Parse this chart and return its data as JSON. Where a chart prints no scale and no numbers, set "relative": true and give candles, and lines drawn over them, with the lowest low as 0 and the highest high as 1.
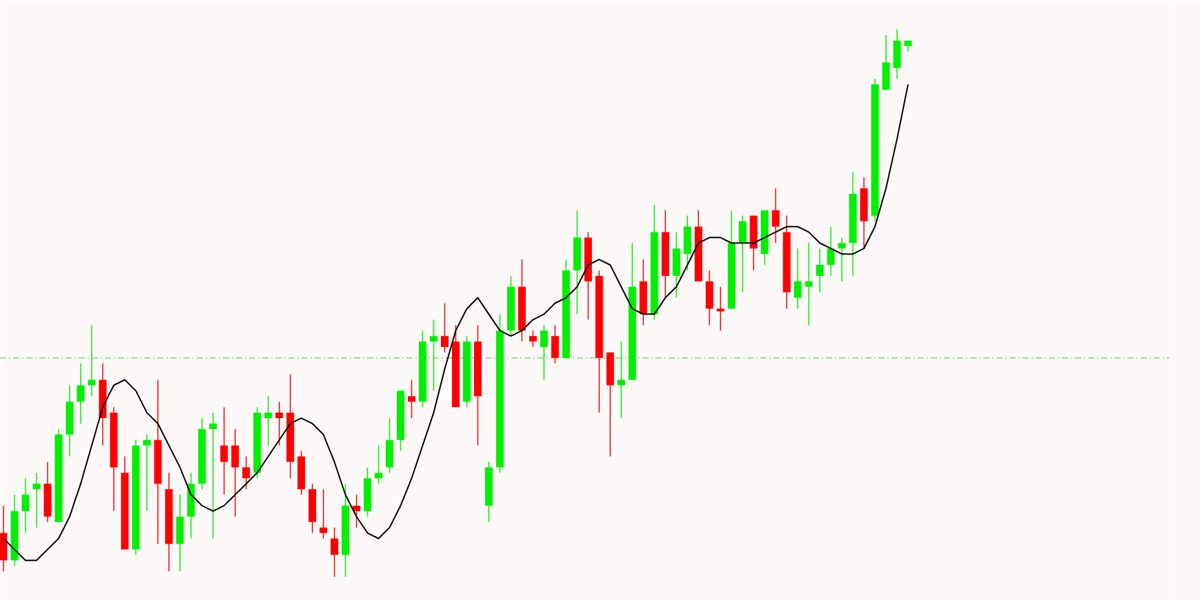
{
  "chart_data": {
    "type": "candlestick",
    "relative": true,
    "categories": [
      null,
      null,
      null,
      null,
      null,
      null,
      null,
      null,
      null,
      null,
      null,
      null,
      null,
      null,
      null,
      null,
      null,
      null,
      null,
      null,
      null,
      null,
      null,
      null,
      null,
      null,
      null,
      null,
      null,
      null,
      null,
      null,
      null,
      null,
      null,
      null,
      null,
      null,
      null,
      null,
      null,
      null,
      null,
      null,
      null,
      null,
      null,
      null,
      null,
      null,
      null,
      null,
      null,
      null,
      null,
      null,
      null,
      null,
      null,
      null,
      null,
      null,
      null,
      null,
      null,
      null,
      null,
      null,
      null,
      null,
      null,
      null,
      null,
      null,
      null,
      null,
      null,
      null,
      null,
      null,
      null,
      null,
      null
    ],
    "ohlc": [
      [
        0.08,
        0.13,
        0.01,
        0.03
      ],
      [
        0.03,
        0.15,
        0.02,
        0.12
      ],
      [
        0.12,
        0.18,
        0.08,
        0.15
      ],
      [
        0.16,
        0.19,
        0.09,
        0.17
      ],
      [
        0.17,
        0.21,
        0.1,
        0.11
      ],
      [
        0.1,
        0.27,
        0.1,
        0.26
      ],
      [
        0.26,
        0.35,
        0.22,
        0.32
      ],
      [
        0.32,
        0.39,
        0.28,
        0.35
      ],
      [
        0.35,
        0.46,
        0.33,
        0.36
      ],
      [
        0.36,
        0.39,
        0.24,
        0.29
      ],
      [
        0.3,
        0.31,
        0.12,
        0.2
      ],
      [
        0.19,
        0.22,
        0.05,
        0.05
      ],
      [
        0.05,
        0.25,
        0.04,
        0.24
      ],
      [
        0.24,
        0.26,
        0.12,
        0.25
      ],
      [
        0.25,
        0.36,
        0.06,
        0.17
      ],
      [
        0.16,
        0.19,
        0.01,
        0.06
      ],
      [
        0.06,
        0.15,
        0.01,
        0.11
      ],
      [
        0.11,
        0.19,
        0.07,
        0.17
      ],
      [
        0.17,
        0.29,
        0.16,
        0.27
      ],
      [
        0.27,
        0.3,
        0.07,
        0.28
      ],
      [
        0.24,
        0.31,
        0.15,
        0.21
      ],
      [
        0.24,
        0.27,
        0.11,
        0.2
      ],
      [
        0.2,
        0.22,
        0.16,
        0.18
      ],
      [
        0.19,
        0.31,
        0.18,
        0.3
      ],
      [
        0.29,
        0.33,
        0.24,
        0.3
      ],
      [
        0.3,
        0.32,
        0.24,
        0.29
      ],
      [
        0.3,
        0.37,
        0.18,
        0.21
      ],
      [
        0.22,
        0.23,
        0.15,
        0.16
      ],
      [
        0.16,
        0.17,
        0.08,
        0.1
      ],
      [
        0.09,
        0.16,
        0.07,
        0.08
      ],
      [
        0.07,
        0.09,
        0,
        0.04
      ],
      [
        0.04,
        0.17,
        0,
        0.13
      ],
      [
        0.13,
        0.15,
        0.09,
        0.12
      ],
      [
        0.12,
        0.2,
        0.11,
        0.18
      ],
      [
        0.18,
        0.24,
        0.17,
        0.19
      ],
      [
        0.2,
        0.29,
        0.19,
        0.25
      ],
      [
        0.25,
        0.34,
        0.23,
        0.34
      ],
      [
        0.33,
        0.36,
        0.29,
        0.32
      ],
      [
        0.32,
        0.45,
        0.31,
        0.43
      ],
      [
        0.43,
        0.47,
        0.34,
        0.44
      ],
      [
        0.44,
        0.5,
        0.41,
        0.42
      ],
      [
        0.43,
        0.46,
        0.31,
        0.31
      ],
      [
        0.32,
        0.44,
        0.31,
        0.43
      ],
      [
        0.43,
        0.46,
        0.24,
        0.33
      ],
      [
        0.13,
        0.21,
        0.1,
        0.2
      ],
      [
        0.2,
        0.48,
        0.19,
        0.45
      ],
      [
        0.45,
        0.55,
        0.44,
        0.53
      ],
      [
        0.53,
        0.58,
        0.43,
        0.45
      ],
      [
        0.44,
        0.45,
        0.42,
        0.43
      ],
      [
        0.42,
        0.46,
        0.36,
        0.45
      ],
      [
        0.44,
        0.46,
        0.39,
        0.4
      ],
      [
        0.4,
        0.58,
        0.4,
        0.56
      ],
      [
        0.56,
        0.67,
        0.48,
        0.62
      ],
      [
        0.62,
        0.63,
        0.47,
        0.54
      ],
      [
        0.55,
        0.56,
        0.3,
        0.4
      ],
      [
        0.41,
        0.41,
        0.22,
        0.35
      ],
      [
        0.35,
        0.43,
        0.29,
        0.36
      ],
      [
        0.36,
        0.61,
        0.36,
        0.53
      ],
      [
        0.54,
        0.58,
        0.46,
        0.48
      ],
      [
        0.48,
        0.68,
        0.47,
        0.63
      ],
      [
        0.63,
        0.67,
        0.51,
        0.55
      ],
      [
        0.55,
        0.63,
        0.51,
        0.6
      ],
      [
        0.59,
        0.66,
        0.56,
        0.64
      ],
      [
        0.64,
        0.67,
        0.54,
        0.54
      ],
      [
        0.54,
        0.56,
        0.46,
        0.49
      ],
      [
        0.49,
        0.53,
        0.45,
        0.485
      ],
      [
        0.49,
        0.67,
        0.49,
        0.61
      ],
      [
        0.61,
        0.66,
        0.52,
        0.65
      ],
      [
        0.66,
        0.66,
        0.56,
        0.6
      ],
      [
        0.59,
        0.67,
        0.57,
        0.67
      ],
      [
        0.67,
        0.71,
        0.61,
        0.64
      ],
      [
        0.63,
        0.66,
        0.49,
        0.52
      ],
      [
        0.51,
        0.6,
        0.49,
        0.54
      ],
      [
        0.53,
        0.61,
        0.46,
        0.54
      ],
      [
        0.55,
        0.6,
        0.52,
        0.57
      ],
      [
        0.57,
        0.64,
        0.55,
        0.6
      ],
      [
        0.6,
        0.62,
        0.54,
        0.61
      ],
      [
        0.61,
        0.74,
        0.55,
        0.7
      ],
      [
        0.71,
        0.73,
        0.6,
        0.65
      ],
      [
        0.66,
        0.91,
        0.65,
        0.9
      ],
      [
        0.89,
        0.99,
        0.89,
        0.94
      ],
      [
        0.93,
        1,
        0.91,
        0.98
      ],
      [
        0.97,
        0.98,
        0.96,
        0.98
      ]
    ],
    "colors": [
      "#ff0000",
      "#00f000",
      "#00f000",
      "#00f000",
      "#ff0000",
      "#00f000",
      "#00f000",
      "#00f000",
      "#00f000",
      "#ff0000",
      "#ff0000",
      "#ff0000",
      "#00f000",
      "#00f000",
      "#ff0000",
      "#ff0000",
      "#00f000",
      "#00f000",
      "#00f000",
      "#00f000",
      "#ff0000",
      "#ff0000",
      "#ff0000",
      "#00f000",
      "#00f000",
      "#ff0000",
      "#ff0000",
      "#ff0000",
      "#ff0000",
      "#ff0000",
      "#ff0000",
      "#00f000",
      "#ff0000",
      "#00f000",
      "#00f000",
      "#00f000",
      "#00f000",
      "#ff0000",
      "#00f000",
      "#00f000",
      "#ff0000",
      "#ff0000",
      "#00f000",
      "#ff0000",
      "#00f000",
      "#00f000",
      "#00f000",
      "#ff0000",
      "#ff0000",
      "#00f000",
      "#ff0000",
      "#00f000",
      "#00f000",
      "#ff0000",
      "#ff0000",
      "#ff0000",
      "#00f000",
      "#00f000",
      "#ff0000",
      "#00f000",
      "#ff0000",
      "#00f000",
      "#00f000",
      "#ff0000",
      "#ff0000",
      "#ff0000",
      "#00f000",
      "#00f000",
      "#ff0000",
      "#00f000",
      "#ff0000",
      "#ff0000",
      "#00f000",
      "#00f000",
      "#00f000",
      "#00f000",
      "#00f000",
      "#00f000",
      "#ff0000",
      "#00f000",
      "#00f000",
      "#00f000",
      "#00f000"
    ],
    "series": [
      {
        "type": "line",
        "color": "#000000",
        "values": [
          0.07,
          0.05,
          0.03,
          0.03,
          0.05,
          0.07,
          0.11,
          0.17,
          0.24,
          0.31,
          0.35,
          0.36,
          0.34,
          0.3,
          0.28,
          0.24,
          0.2,
          0.15,
          0.13,
          0.12,
          0.13,
          0.15,
          0.17,
          0.19,
          0.22,
          0.25,
          0.28,
          0.29,
          0.28,
          0.26,
          0.21,
          0.15,
          0.11,
          0.08,
          0.07,
          0.09,
          0.13,
          0.18,
          0.24,
          0.3,
          0.38,
          0.45,
          0.49,
          0.51,
          0.48,
          0.45,
          0.44,
          0.45,
          0.47,
          0.48,
          0.5,
          0.51,
          0.53,
          0.57,
          0.58,
          0.57,
          0.53,
          0.49,
          0.48,
          0.48,
          0.51,
          0.53,
          0.57,
          0.61,
          0.62,
          0.62,
          0.61,
          0.61,
          0.61,
          0.62,
          0.63,
          0.64,
          0.64,
          0.63,
          0.61,
          0.6,
          0.59,
          0.59,
          0.6,
          0.64,
          0.71,
          0.8,
          0.9
        ]
      }
    ],
    "ref_lines": [
      {
        "axis": "y",
        "value": 0.4,
        "color": "#32cd32",
        "line_style": "dashed"
      }
    ]
  }
}
